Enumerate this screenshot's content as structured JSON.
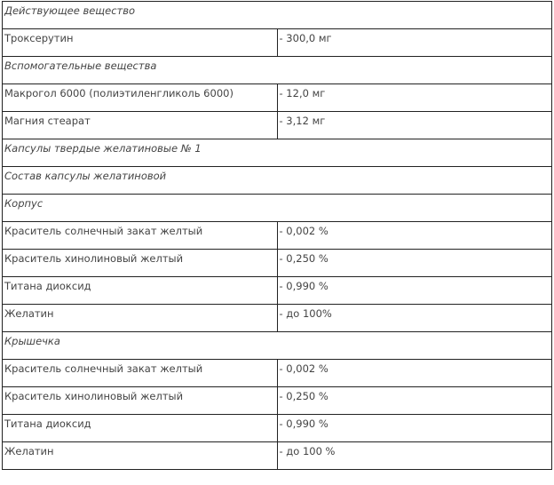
{
  "rows": [
    {
      "type": "section",
      "label": "Действующее вещество"
    },
    {
      "type": "item",
      "name": "Троксерутин",
      "value": "- 300,0 мг"
    },
    {
      "type": "section",
      "label": "Вспомогательные вещества"
    },
    {
      "type": "item",
      "name": "Макрогол 6000 (полиэтиленгликоль 6000)",
      "value": "- 12,0 мг"
    },
    {
      "type": "item",
      "name": "Магния стеарат",
      "value": "- 3,12 мг"
    },
    {
      "type": "section",
      "label": "Капсулы твердые желатиновые № 1"
    },
    {
      "type": "section",
      "label": "Состав капсулы желатиновой"
    },
    {
      "type": "section",
      "label": "Корпус"
    },
    {
      "type": "item",
      "name": "Краситель солнечный закат желтый",
      "value": "- 0,002 %"
    },
    {
      "type": "item",
      "name": "Краситель хинолиновый желтый",
      "value": "- 0,250 %"
    },
    {
      "type": "item",
      "name": "Титана диоксид",
      "value": "- 0,990 %"
    },
    {
      "type": "item",
      "name": "Желатин",
      "value": "- до 100%"
    },
    {
      "type": "section",
      "label": "Крышечка"
    },
    {
      "type": "item",
      "name": "Краситель солнечный закат желтый",
      "value": "- 0,002 %"
    },
    {
      "type": "item",
      "name": "Краситель хинолиновый желтый",
      "value": "- 0,250 %"
    },
    {
      "type": "item",
      "name": "Титана диоксид",
      "value": "- 0,990 %"
    },
    {
      "type": "item",
      "name": "Желатин",
      "value": "- до 100 %"
    }
  ]
}
